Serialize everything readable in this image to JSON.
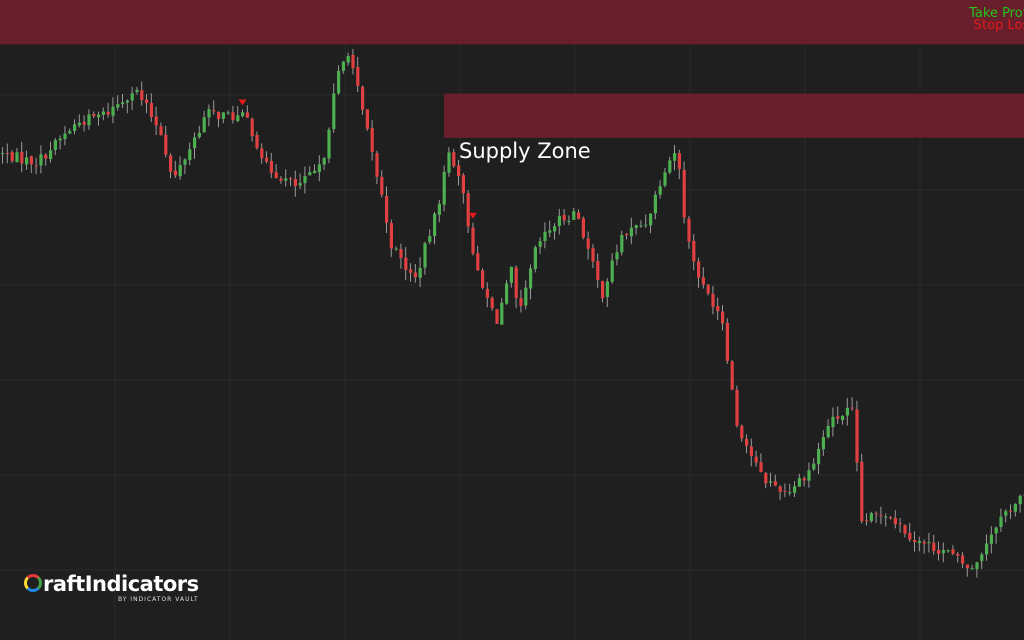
{
  "chart_data": {
    "type": "candlestick",
    "bullish_color": "#4caf50",
    "bearish_color": "#e0403f",
    "background": "#1f1f1f",
    "grid": true,
    "zones": [
      {
        "name": "Supply Zone",
        "top": 99.1,
        "bottom": 98.2,
        "color": "#6e1f2c"
      },
      {
        "top": 101.0,
        "bottom": 100.1,
        "color": "#6e1f2c"
      }
    ],
    "labels": {
      "take_profit": "Take Profit",
      "stop_loss": "Stop Loss"
    },
    "signals": [
      {
        "type": "sell",
        "index": 50
      },
      {
        "type": "sell",
        "index": 98
      }
    ]
  },
  "logo": {
    "text": "raftIndicators",
    "sub": "BY INDICATOR VAULT"
  }
}
